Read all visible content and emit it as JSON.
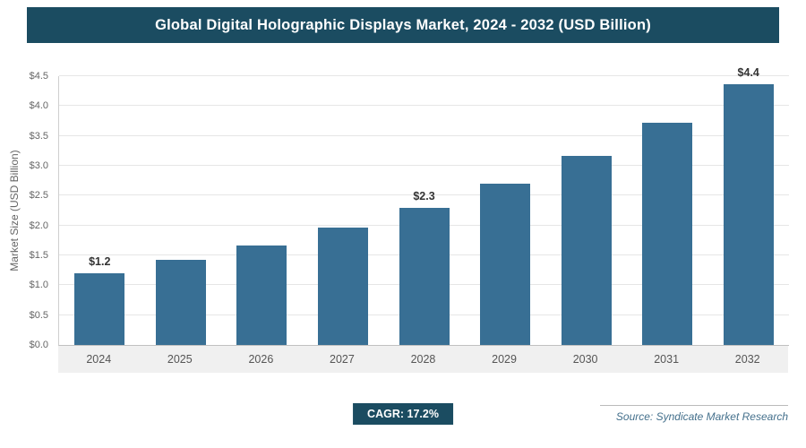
{
  "title": "Global Digital Holographic Displays Market, 2024 - 2032 (USD Billion)",
  "footer": {
    "cagr_label": "CAGR: 17.2%",
    "source": "Source: Syndicate Market Research"
  },
  "colors": {
    "header_bg": "#1B4C61",
    "bar": "#386F94",
    "badge_bg": "#1B4C61",
    "source_text": "#44708C"
  },
  "chart_data": {
    "type": "bar",
    "title": "Global Digital Holographic Displays Market, 2024 - 2032 (USD Billion)",
    "categories": [
      "2024",
      "2025",
      "2026",
      "2027",
      "2028",
      "2029",
      "2030",
      "2031",
      "2032"
    ],
    "values": [
      1.2,
      1.42,
      1.66,
      1.96,
      2.3,
      2.7,
      3.17,
      3.72,
      4.37
    ],
    "bar_labels": [
      "$1.2",
      "",
      "",
      "",
      "$2.3",
      "",
      "",
      "",
      "$4.4"
    ],
    "xlabel": "",
    "ylabel": "Market Size (USD Billion)",
    "ylim": [
      0,
      4.5
    ],
    "ytick_step": 0.5,
    "ytick_labels": [
      "$0.0",
      "$0.5",
      "$1.0",
      "$1.5",
      "$2.0",
      "$2.5",
      "$3.0",
      "$3.5",
      "$4.0",
      "$4.5"
    ],
    "grid": true,
    "legend": false
  }
}
